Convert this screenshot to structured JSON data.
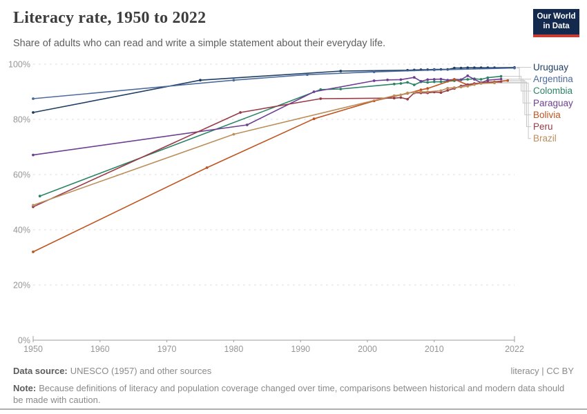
{
  "header": {
    "title": "Literacy rate, 1950 to 2022",
    "subtitle": "Share of adults who can read and write a simple statement about their everyday life."
  },
  "logo": {
    "line1": "Our World",
    "line2": "in Data"
  },
  "footer": {
    "source_label": "Data source:",
    "source_text": "UNESCO (1957) and other sources",
    "right_text": "literacy | CC BY",
    "note_label": "Note:",
    "note_text": "Because definitions of literacy and population coverage changed over time, comparisons between historical and modern data should be made with caution."
  },
  "colors": {
    "logo_bg": "#132a4e",
    "logo_bar": "#cc3b31",
    "grid": "#dcdcdc",
    "axis": "#9c9c9c",
    "tick_label": "#969696",
    "connector": "#c6c6c6"
  },
  "chart_data": {
    "type": "line",
    "title": "Literacy rate, 1950 to 2022",
    "xlabel": "",
    "ylabel": "",
    "unit": "%",
    "x_range": [
      1950,
      2022
    ],
    "y_range": [
      0,
      100
    ],
    "x_ticks": [
      "1950",
      "1960",
      "1970",
      "1980",
      "1990",
      "2000",
      "2010",
      "2022"
    ],
    "y_ticks": [
      "0%",
      "20%",
      "40%",
      "60%",
      "80%",
      "100%"
    ],
    "grid": "horizontal-dashed",
    "legend_position": "right",
    "series": [
      {
        "name": "Uruguay",
        "color": "#1d3d63",
        "points": [
          [
            1950,
            82.5
          ],
          [
            1975,
            94.2
          ],
          [
            1996,
            97.5
          ],
          [
            2006,
            97.8
          ],
          [
            2007,
            97.9
          ],
          [
            2008,
            98.0
          ],
          [
            2009,
            98.0
          ],
          [
            2010,
            98.1
          ],
          [
            2011,
            98.1
          ],
          [
            2012,
            98.1
          ],
          [
            2013,
            98.6
          ],
          [
            2014,
            98.6
          ],
          [
            2015,
            98.7
          ],
          [
            2016,
            98.7
          ],
          [
            2017,
            98.7
          ],
          [
            2018,
            98.7
          ],
          [
            2019,
            98.7
          ],
          [
            2022,
            98.8
          ]
        ]
      },
      {
        "name": "Argentina",
        "color": "#4c6a9c",
        "points": [
          [
            1950,
            87.5
          ],
          [
            1980,
            94.2
          ],
          [
            1991,
            96.2
          ],
          [
            2001,
            97.2
          ],
          [
            2010,
            97.9
          ],
          [
            2022,
            98.6
          ]
        ]
      },
      {
        "name": "Colombia",
        "color": "#2c8465",
        "points": [
          [
            1951,
            52.2
          ],
          [
            1993,
            90.8
          ],
          [
            1996,
            91.0
          ],
          [
            2004,
            92.8
          ],
          [
            2005,
            93.0
          ],
          [
            2006,
            93.4
          ],
          [
            2007,
            92.5
          ],
          [
            2008,
            93.6
          ],
          [
            2009,
            93.4
          ],
          [
            2010,
            93.6
          ],
          [
            2011,
            93.6
          ],
          [
            2012,
            93.8
          ],
          [
            2013,
            94.0
          ],
          [
            2014,
            94.3
          ],
          [
            2015,
            94.5
          ],
          [
            2016,
            94.7
          ],
          [
            2017,
            94.5
          ],
          [
            2018,
            95.1
          ],
          [
            2020,
            95.6
          ]
        ]
      },
      {
        "name": "Paraguay",
        "color": "#6d3e91",
        "points": [
          [
            1950,
            67.1
          ],
          [
            1982,
            78.0
          ],
          [
            1992,
            90.0
          ],
          [
            2001,
            94.0
          ],
          [
            2003,
            94.3
          ],
          [
            2005,
            94.4
          ],
          [
            2007,
            95.2
          ],
          [
            2008,
            93.8
          ],
          [
            2009,
            94.4
          ],
          [
            2010,
            94.5
          ],
          [
            2011,
            94.6
          ],
          [
            2012,
            94.2
          ],
          [
            2013,
            94.5
          ],
          [
            2014,
            94.4
          ],
          [
            2015,
            95.8
          ],
          [
            2016,
            94.5
          ],
          [
            2017,
            93.3
          ],
          [
            2018,
            94.2
          ],
          [
            2020,
            94.6
          ]
        ]
      },
      {
        "name": "Bolivia",
        "color": "#c0531f",
        "points": [
          [
            1950,
            32.0
          ],
          [
            1976,
            62.5
          ],
          [
            1992,
            80.2
          ],
          [
            2001,
            86.7
          ],
          [
            2006,
            89.4
          ],
          [
            2008,
            90.7
          ],
          [
            2009,
            91.2
          ],
          [
            2013,
            94.5
          ],
          [
            2015,
            92.5
          ],
          [
            2017,
            93.1
          ],
          [
            2019,
            93.6
          ],
          [
            2021,
            94.1
          ]
        ]
      },
      {
        "name": "Peru",
        "color": "#993b47",
        "points": [
          [
            1950,
            48.3
          ],
          [
            1981,
            82.5
          ],
          [
            1993,
            87.5
          ],
          [
            2004,
            87.7
          ],
          [
            2005,
            87.9
          ],
          [
            2006,
            87.3
          ],
          [
            2007,
            89.6
          ],
          [
            2008,
            89.6
          ],
          [
            2009,
            89.6
          ],
          [
            2010,
            89.9
          ],
          [
            2011,
            89.7
          ],
          [
            2012,
            90.5
          ],
          [
            2013,
            91.2
          ],
          [
            2014,
            92.1
          ],
          [
            2015,
            92.6
          ],
          [
            2016,
            93.0
          ],
          [
            2017,
            93.2
          ],
          [
            2018,
            93.5
          ],
          [
            2020,
            93.5
          ]
        ]
      },
      {
        "name": "Brazil",
        "color": "#bc8e5a",
        "points": [
          [
            1950,
            48.9
          ],
          [
            1980,
            74.6
          ],
          [
            2004,
            88.6
          ],
          [
            2005,
            88.9
          ],
          [
            2006,
            89.6
          ],
          [
            2007,
            89.8
          ],
          [
            2008,
            90.0
          ],
          [
            2009,
            90.0
          ],
          [
            2011,
            90.4
          ],
          [
            2012,
            91.3
          ],
          [
            2013,
            91.5
          ],
          [
            2014,
            91.7
          ],
          [
            2015,
            92.0
          ],
          [
            2016,
            92.6
          ],
          [
            2017,
            93.0
          ],
          [
            2019,
            93.2
          ]
        ]
      }
    ]
  }
}
